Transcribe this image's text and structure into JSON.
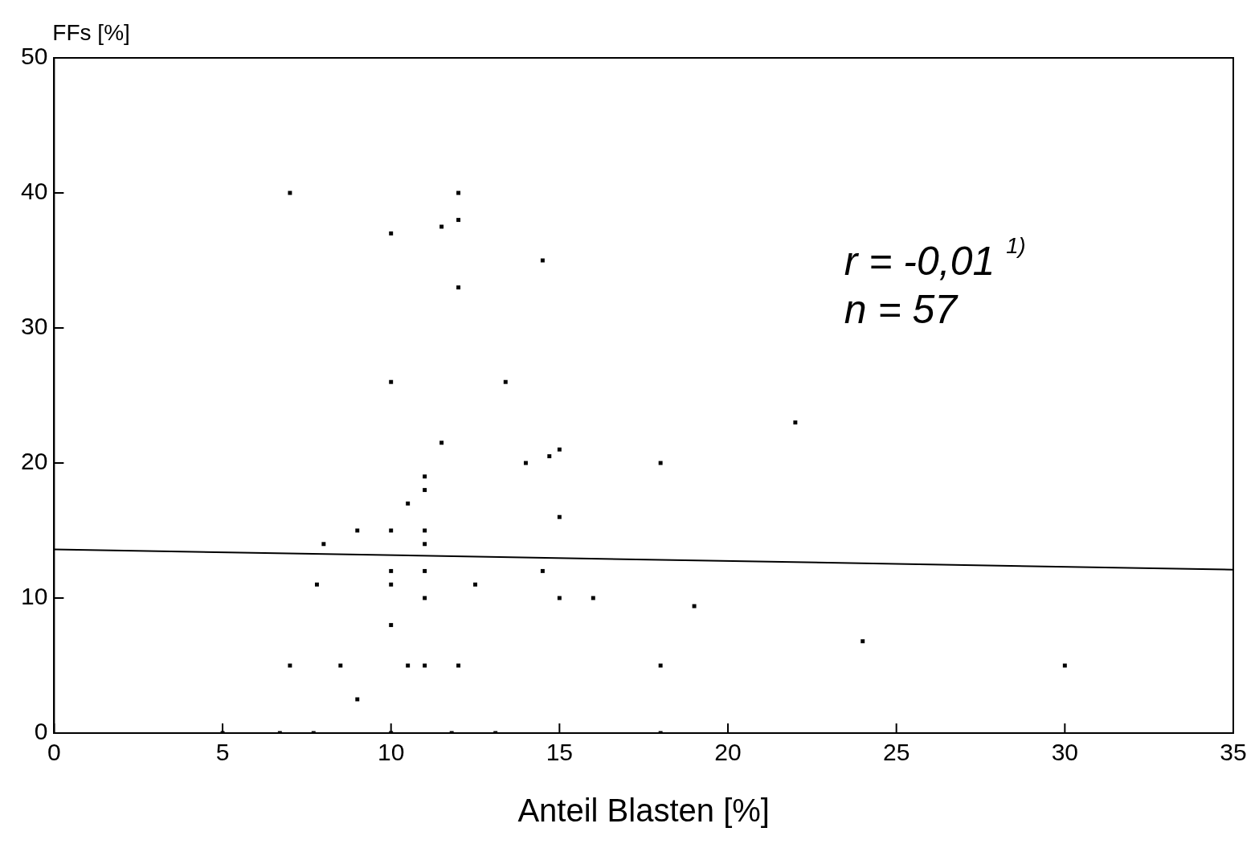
{
  "chart_data": {
    "type": "scatter",
    "xlabel": "Anteil Blasten [%]",
    "ylabel": "FFs [%]",
    "xlim": [
      0,
      35
    ],
    "xticks": [
      0,
      5,
      10,
      15,
      20,
      25,
      30,
      35
    ],
    "ylim": [
      0,
      50
    ],
    "yticks": [
      0,
      10,
      20,
      30,
      40,
      50
    ],
    "grid": false,
    "legend": false,
    "marker": "square",
    "annotations": [
      "r = -0,01 $^{1)}$",
      "n = 57"
    ],
    "series": [
      {
        "color": "#000000",
        "x": [
          7,
          12,
          12,
          10,
          11.5,
          14.5,
          12,
          10,
          13.4,
          11.5,
          14,
          14.7,
          15,
          11,
          11,
          10.5,
          18,
          22,
          15,
          8,
          9,
          10,
          11,
          11,
          7.8,
          10,
          10,
          11,
          11,
          12.5,
          14.5,
          15,
          16,
          19,
          10,
          24,
          7,
          8.5,
          10.5,
          11,
          12,
          18,
          30,
          9,
          5,
          6.7,
          7.7,
          10,
          11.8,
          13.1,
          18
        ],
        "values": [
          40,
          40,
          38,
          37,
          37.5,
          35,
          33,
          26,
          26,
          21.5,
          20,
          20.5,
          21,
          19,
          18,
          17,
          20,
          23,
          16,
          14,
          15,
          15,
          15,
          14,
          11,
          12,
          11,
          12,
          10,
          11,
          12,
          10,
          10,
          9.4,
          8,
          6.8,
          5,
          5,
          5,
          5,
          5,
          5,
          5,
          2.5,
          0,
          0,
          0,
          0,
          0,
          0,
          0
        ]
      },
      {
        "type": "line",
        "color": "#000000",
        "marker": "none",
        "line_style": "solid",
        "x": [
          0,
          35
        ],
        "values": [
          13.6,
          12.1
        ]
      }
    ]
  }
}
